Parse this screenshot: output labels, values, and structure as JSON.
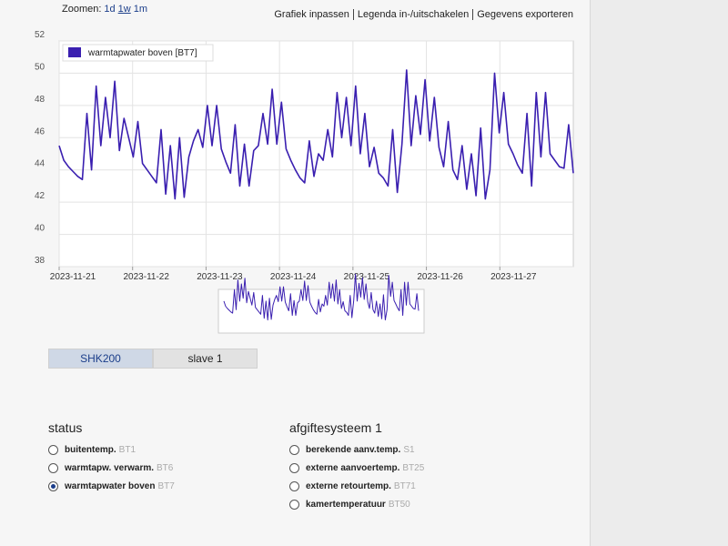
{
  "toolbar": {
    "zoom_label": "Zoomen:",
    "zoom_options": [
      "1d",
      "1w",
      "1m"
    ],
    "zoom_active": 1,
    "actions": [
      "Grafiek inpassen",
      "Legenda in-/uitschakelen",
      "Gegevens exporteren"
    ]
  },
  "chart_data": {
    "type": "line",
    "series": [
      {
        "name": "warmtapwater boven [BT7]",
        "color": "#3a1fb0",
        "values": [
          45.5,
          44.6,
          44.2,
          43.9,
          43.6,
          43.4,
          47.5,
          44,
          49.2,
          45.5,
          48.5,
          46,
          49.5,
          45.2,
          47.2,
          46,
          44.8,
          47,
          44.4,
          44,
          43.6,
          43.2,
          46.5,
          42.5,
          45.5,
          42.2,
          46,
          42.3,
          44.8,
          45.8,
          46.5,
          45.4,
          48,
          45.5,
          48,
          45.3,
          44.5,
          43.8,
          46.8,
          43,
          45.6,
          43,
          45.2,
          45.5,
          47.5,
          45.6,
          49,
          45.6,
          48.2,
          45.3,
          44.6,
          44,
          43.5,
          43.2,
          45.8,
          43.6,
          45,
          44.6,
          46.5,
          44.8,
          48.8,
          46,
          48.5,
          45.5,
          49.2,
          45,
          47.5,
          44.2,
          45.4,
          43.8,
          43.5,
          43,
          46.5,
          42.6,
          45.6,
          50.2,
          45.5,
          48.6,
          46.2,
          49.6,
          45.8,
          48.5,
          45.4,
          44.2,
          47,
          44,
          43.4,
          45.5,
          42.8,
          45,
          42.4,
          46.6,
          42.2,
          44,
          50,
          46.3,
          48.8,
          45.6,
          45,
          44.3,
          43.8,
          47.5,
          43,
          48.8,
          44.8,
          48.8,
          45,
          44.6,
          44.2,
          44.1,
          46.8,
          43.8
        ]
      }
    ],
    "xlim": [
      "2023-11-21",
      "2023-11-28"
    ],
    "xticks": [
      "2023-11-21",
      "2023-11-22",
      "2023-11-23",
      "2023-11-24",
      "2023-11-25",
      "2023-11-26",
      "2023-11-27"
    ],
    "ylim": [
      38,
      52
    ],
    "yticks": [
      38,
      40,
      42,
      44,
      46,
      48,
      50,
      52
    ],
    "grid": true,
    "legend": "top-left"
  },
  "tabs": {
    "items": [
      "SHK200",
      "slave 1"
    ],
    "active": 0
  },
  "sections": [
    {
      "title": "status",
      "selected": 2,
      "options": [
        {
          "label": "buitentemp.",
          "code": "BT1"
        },
        {
          "label": "warmtapw. verwarm.",
          "code": "BT6"
        },
        {
          "label": "warmtapwater boven",
          "code": "BT7"
        }
      ]
    },
    {
      "title": "afgiftesysteem 1",
      "selected": -1,
      "options": [
        {
          "label": "berekende aanv.temp.",
          "code": "S1"
        },
        {
          "label": "externe aanvoertemp.",
          "code": "BT25"
        },
        {
          "label": "externe retourtemp.",
          "code": "BT71"
        },
        {
          "label": "kamertemperatuur",
          "code": "BT50"
        }
      ]
    }
  ]
}
